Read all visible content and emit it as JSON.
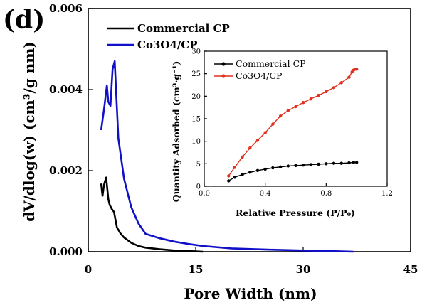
{
  "panel_label": "(d)",
  "chart_data": [
    {
      "type": "line",
      "xlabel": "Pore Width (nm)",
      "ylabel": "dV/dlog(w) (cm³/g nm)",
      "xlim": [
        0,
        45
      ],
      "ylim": [
        0,
        0.006
      ],
      "xticks": [
        "0",
        "15",
        "30",
        "45"
      ],
      "yticks": [
        "0.000",
        "0.002",
        "0.004",
        "0.006"
      ],
      "legend_position": "top-left",
      "series": [
        {
          "name": "Commercial CP",
          "color": "#000000",
          "x": [
            1.8,
            2.0,
            2.2,
            2.5,
            2.8,
            3.0,
            3.3,
            3.6,
            4.0,
            4.5,
            5.0,
            6.0,
            7.0,
            8.0,
            10.0,
            12.0,
            14.0,
            16.0
          ],
          "y": [
            0.00168,
            0.00138,
            0.00165,
            0.00183,
            0.0013,
            0.00115,
            0.00105,
            0.00098,
            0.0006,
            0.00045,
            0.00035,
            0.00022,
            0.00014,
            0.0001,
            6e-05,
            3e-05,
            1.5e-05,
            0.0
          ]
        },
        {
          "name": "Co3O4/CP",
          "color": "#1010c8",
          "x": [
            1.8,
            2.2,
            2.6,
            2.8,
            3.1,
            3.4,
            3.7,
            3.9,
            4.2,
            4.6,
            5.0,
            6.0,
            7.0,
            8.0,
            10.0,
            12.0,
            14.0,
            16.0,
            20.0,
            25.0,
            30.0,
            35.0,
            37.0
          ],
          "y": [
            0.003,
            0.0035,
            0.0041,
            0.0037,
            0.0036,
            0.0045,
            0.0047,
            0.0039,
            0.0028,
            0.0023,
            0.0018,
            0.0011,
            0.0007,
            0.00044,
            0.00033,
            0.00025,
            0.00019,
            0.00014,
            8e-05,
            5e-05,
            3e-05,
            1e-05,
            0.0
          ]
        }
      ]
    },
    {
      "type": "line",
      "xlabel": "Relative Pressure (P/P₀)",
      "ylabel": "Quantity Adsorbed (cm³·g⁻¹)",
      "xlim": [
        0,
        1.2
      ],
      "ylim": [
        0,
        30
      ],
      "xticks": [
        "0.0",
        "0.4",
        "0.8",
        "1.2"
      ],
      "yticks": [
        "0",
        "5",
        "10",
        "15",
        "20",
        "25",
        "30"
      ],
      "legend_position": "top-left",
      "series": [
        {
          "name": "Commercial CP",
          "color": "#000000",
          "x": [
            0.16,
            0.2,
            0.25,
            0.3,
            0.35,
            0.4,
            0.45,
            0.5,
            0.55,
            0.6,
            0.65,
            0.7,
            0.75,
            0.8,
            0.85,
            0.9,
            0.95,
            0.98,
            1.0
          ],
          "y": [
            1.2,
            2.0,
            2.6,
            3.1,
            3.5,
            3.8,
            4.1,
            4.3,
            4.5,
            4.6,
            4.7,
            4.8,
            4.9,
            5.0,
            5.1,
            5.1,
            5.2,
            5.3,
            5.3
          ]
        },
        {
          "name": "Co3O4/CP",
          "color": "#e03020",
          "x": [
            0.16,
            0.2,
            0.25,
            0.3,
            0.35,
            0.4,
            0.45,
            0.5,
            0.55,
            0.6,
            0.65,
            0.7,
            0.75,
            0.8,
            0.85,
            0.9,
            0.95,
            0.97,
            0.98,
            0.99,
            1.0
          ],
          "y": [
            2.3,
            4.2,
            6.5,
            8.5,
            10.2,
            11.9,
            13.8,
            15.6,
            16.8,
            17.7,
            18.6,
            19.4,
            20.2,
            21.0,
            21.9,
            23.0,
            24.2,
            25.4,
            25.8,
            26.0,
            26.0
          ]
        }
      ]
    }
  ]
}
